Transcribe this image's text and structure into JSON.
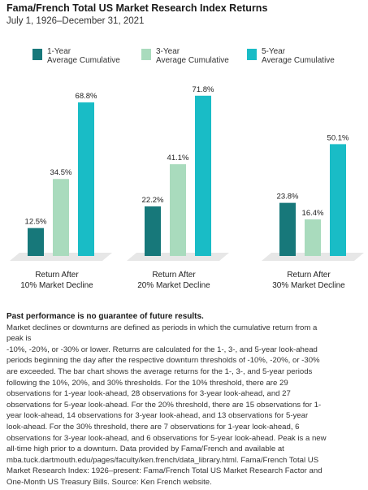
{
  "title": "Fama/French Total US Market Research Index Returns",
  "subtitle": "July 1, 1926–December 31, 2021",
  "colors": {
    "one_year": "#17787a",
    "three_year": "#a9dbbd",
    "five_year": "#19bcc6",
    "floor": "#e7e7e7"
  },
  "legend": [
    {
      "line1": "1-Year",
      "line2": "Average Cumulative"
    },
    {
      "line1": "3-Year",
      "line2": "Average Cumulative"
    },
    {
      "line1": "5-Year",
      "line2": "Average Cumulative"
    }
  ],
  "chart_data": {
    "type": "bar",
    "categories": [
      {
        "line1": "Return After",
        "line2": "10% Market Decline"
      },
      {
        "line1": "Return After",
        "line2": "20% Market Decline"
      },
      {
        "line1": "Return After",
        "line2": "30% Market Decline"
      }
    ],
    "series": [
      {
        "name": "1-Year Average Cumulative",
        "values": [
          12.5,
          22.2,
          23.8
        ],
        "labels": [
          "12.5%",
          "22.2%",
          "23.8%"
        ]
      },
      {
        "name": "3-Year Average Cumulative",
        "values": [
          34.5,
          41.1,
          16.4
        ],
        "labels": [
          "34.5%",
          "41.1%",
          "16.4%"
        ]
      },
      {
        "name": "5-Year Average Cumulative",
        "values": [
          68.8,
          71.8,
          50.1
        ],
        "labels": [
          "68.8%",
          "71.8%",
          "50.1%"
        ]
      }
    ],
    "ylim": [
      0,
      75
    ],
    "grid": false,
    "legend_position": "top"
  },
  "footnote": {
    "heading": "Past performance is no guarantee of future results.",
    "lines": [
      "Market declines or downturns are defined as periods in which the cumulative return from a",
      "peak is",
      "-10%, -20%, or -30% or lower. Returns are calculated for the 1-, 3-, and 5-year look-ahead",
      "periods beginning the day after the respective downturn thresholds of -10%, -20%, or -30%",
      "are exceeded. The bar chart shows the average returns for the 1-, 3-, and 5-year periods",
      "following the 10%, 20%, and 30% thresholds. For the 10% threshold, there are 29",
      "observations for 1-year look-ahead, 28 observations for 3-year look-ahead, and 27",
      "observations for 5-year look-ahead. For the 20% threshold, there are 15 observations for 1-",
      "year look-ahead, 14 observations for 3-year look-ahead, and 13 observations for 5-year",
      "look-ahead. For the 30% threshold, there are 7 observations for 1-year look-ahead, 6",
      "observations for 3-year look-ahead, and 6 observations for 5-year look-ahead. Peak is a new",
      "all-time high prior to a downturn. Data provided by Fama/French and available at",
      "mba.tuck.dartmouth.edu/pages/faculty/ken.french/data_library.html. Fama/French Total US",
      "Market Research Index: 1926–present: Fama/French Total US Market Research Factor and",
      "One-Month US Treasury Bills. Source: Ken French website."
    ]
  }
}
